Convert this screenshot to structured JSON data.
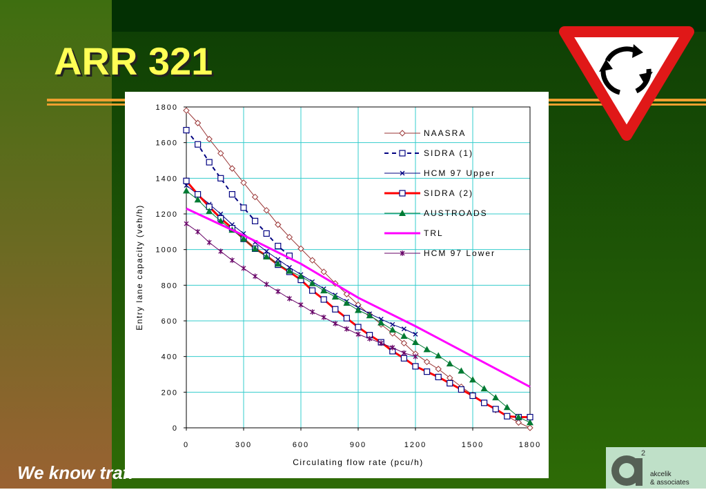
{
  "slide": {
    "title": "ARR 321",
    "footer": "We know traff",
    "logo_sup": "2",
    "logo_line1": "akcelik",
    "logo_line2": "& associates"
  },
  "chart_data": {
    "type": "line",
    "x_label": "Circulating flow rate (pcu/h)",
    "y_label": "Entry lane capacity (veh/h)",
    "xlim": [
      0,
      1800
    ],
    "ylim": [
      0,
      1800
    ],
    "xticks": [
      0,
      300,
      600,
      900,
      1200,
      1500,
      1800
    ],
    "yticks": [
      0,
      200,
      400,
      600,
      800,
      1000,
      1200,
      1400,
      1600,
      1800
    ],
    "grid": true,
    "grid_color": "#33cccc",
    "series": [
      {
        "name": "NAASRA",
        "color": "#993333",
        "marker": "diamond",
        "dash": false,
        "line_width": 1,
        "x": [
          0,
          60,
          120,
          180,
          240,
          300,
          360,
          420,
          480,
          540,
          600,
          660,
          720,
          780,
          840,
          900,
          960,
          1020,
          1080,
          1140,
          1200,
          1260,
          1320,
          1380,
          1440,
          1500,
          1560,
          1620,
          1680,
          1740,
          1800
        ],
        "values": [
          1780,
          1710,
          1620,
          1540,
          1455,
          1375,
          1295,
          1220,
          1140,
          1070,
          1005,
          940,
          875,
          810,
          750,
          690,
          635,
          580,
          530,
          475,
          415,
          370,
          330,
          280,
          230,
          185,
          140,
          100,
          65,
          30,
          0
        ]
      },
      {
        "name": "SIDRA (1)",
        "color": "#000080",
        "marker": "square",
        "dash": true,
        "line_width": 2,
        "x": [
          0,
          60,
          120,
          180,
          240,
          300,
          360,
          420,
          480,
          540
        ],
        "values": [
          1670,
          1590,
          1490,
          1400,
          1310,
          1235,
          1160,
          1090,
          1020,
          965
        ]
      },
      {
        "name": "HCM 97 Upper",
        "color": "#000080",
        "marker": "x",
        "dash": false,
        "line_width": 1,
        "x": [
          0,
          60,
          120,
          180,
          240,
          300,
          360,
          420,
          480,
          540,
          600,
          660,
          720,
          780,
          840,
          900,
          960,
          1020,
          1080,
          1140,
          1200
        ],
        "values": [
          1360,
          1310,
          1255,
          1200,
          1140,
          1090,
          1040,
          990,
          945,
          900,
          860,
          820,
          780,
          745,
          710,
          675,
          640,
          610,
          580,
          555,
          525
        ]
      },
      {
        "name": "SIDRA (2)",
        "color": "#ff0000",
        "marker": "square",
        "dash": false,
        "line_width": 3,
        "x": [
          0,
          60,
          120,
          180,
          240,
          300,
          360,
          420,
          480,
          540,
          600,
          660,
          720,
          780,
          840,
          900,
          960,
          1020,
          1080,
          1140,
          1200,
          1260,
          1320,
          1380,
          1440,
          1500,
          1560,
          1620,
          1680,
          1740,
          1800
        ],
        "values": [
          1385,
          1310,
          1240,
          1175,
          1120,
          1060,
          1005,
          965,
          915,
          875,
          830,
          770,
          720,
          665,
          615,
          565,
          520,
          480,
          430,
          390,
          345,
          315,
          285,
          250,
          215,
          180,
          140,
          105,
          65,
          60,
          60
        ]
      },
      {
        "name": "AUSTROADS",
        "color": "#007a33",
        "marker": "triangle",
        "dash": false,
        "line_width": 1,
        "x": [
          0,
          60,
          120,
          180,
          240,
          300,
          360,
          420,
          480,
          540,
          600,
          660,
          720,
          780,
          840,
          900,
          960,
          1020,
          1080,
          1140,
          1200,
          1260,
          1320,
          1380,
          1440,
          1500,
          1560,
          1620,
          1680,
          1740,
          1800
        ],
        "values": [
          1330,
          1280,
          1215,
          1160,
          1110,
          1060,
          1005,
          960,
          920,
          880,
          850,
          810,
          770,
          735,
          700,
          660,
          630,
          590,
          550,
          515,
          480,
          440,
          405,
          360,
          320,
          270,
          220,
          170,
          115,
          60,
          30
        ]
      },
      {
        "name": "TRL",
        "color": "#ff00ff",
        "marker": "none",
        "dash": false,
        "line_width": 3,
        "x": [
          0,
          300,
          600,
          900,
          1200,
          1500,
          1800
        ],
        "values": [
          1230,
          1080,
          920,
          730,
          570,
          400,
          230
        ]
      },
      {
        "name": "HCM 97 Lower",
        "color": "#660066",
        "marker": "star",
        "dash": false,
        "line_width": 1,
        "x": [
          0,
          60,
          120,
          180,
          240,
          300,
          360,
          420,
          480,
          540,
          600,
          660,
          720,
          780,
          840,
          900,
          960,
          1020,
          1080,
          1140,
          1200
        ],
        "values": [
          1145,
          1100,
          1040,
          990,
          940,
          895,
          850,
          805,
          765,
          725,
          690,
          650,
          620,
          585,
          555,
          525,
          500,
          475,
          450,
          420,
          400
        ]
      }
    ]
  }
}
